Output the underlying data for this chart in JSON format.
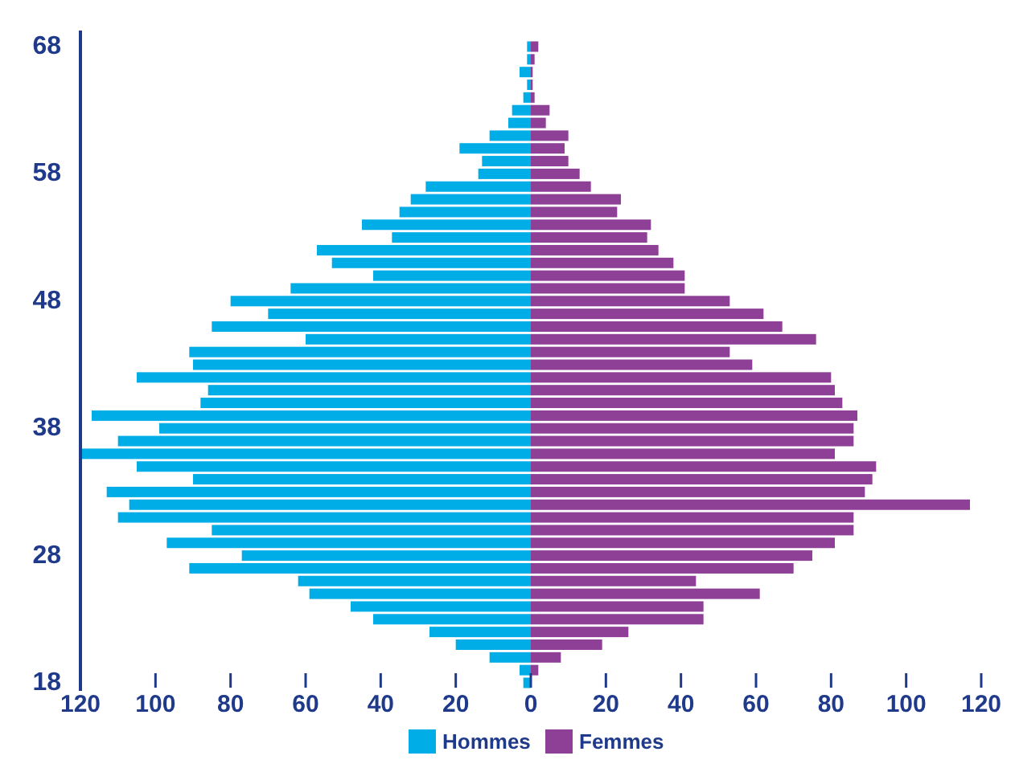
{
  "chart_data": {
    "type": "bar",
    "orientation": "horizontal",
    "stacked": true,
    "x": [
      68,
      67,
      66,
      65,
      64,
      63,
      62,
      61,
      60,
      59,
      58,
      57,
      56,
      55,
      54,
      53,
      52,
      51,
      50,
      49,
      48,
      47,
      46,
      45,
      44,
      43,
      42,
      41,
      40,
      39,
      38,
      37,
      36,
      35,
      34,
      33,
      32,
      31,
      30,
      29,
      28,
      27,
      26,
      25,
      24,
      23,
      22,
      21,
      20,
      19,
      18
    ],
    "series": [
      {
        "name": "Hommes",
        "color": "#00ade6",
        "values": [
          -1,
          -1,
          -3,
          -1,
          -2,
          -5,
          -6,
          -11,
          -19,
          -13,
          -14,
          -28,
          -32,
          -35,
          -45,
          -37,
          -57,
          -53,
          -42,
          -64,
          -80,
          -70,
          -85,
          -60,
          -91,
          -90,
          -105,
          -86,
          -88,
          -117,
          -99,
          -110,
          -120,
          -105,
          -90,
          -113,
          -107,
          -110,
          -85,
          -97,
          -77,
          -91,
          -62,
          -59,
          -48,
          -42,
          -27,
          -20,
          -11,
          -3,
          -2
        ]
      },
      {
        "name": "Femmes",
        "color": "#8e3f96",
        "values": [
          2,
          1,
          0.5,
          0.5,
          1,
          5,
          4,
          10,
          9,
          10,
          13,
          16,
          24,
          23,
          32,
          31,
          34,
          38,
          41,
          41,
          53,
          62,
          67,
          76,
          53,
          59,
          80,
          81,
          83,
          87,
          86,
          86,
          81,
          92,
          91,
          89,
          117,
          86,
          86,
          81,
          75,
          70,
          44,
          61,
          46,
          46,
          26,
          19,
          8,
          2,
          0
        ]
      }
    ],
    "xlim": [
      -120,
      120
    ],
    "xticks": [
      {
        "value": -120,
        "label": "120"
      },
      {
        "value": -100,
        "label": "100"
      },
      {
        "value": -80,
        "label": "80"
      },
      {
        "value": -60,
        "label": "60"
      },
      {
        "value": -40,
        "label": "40"
      },
      {
        "value": -20,
        "label": "20"
      },
      0,
      20,
      40,
      60,
      80,
      100,
      120
    ],
    "ylim": [
      18,
      68
    ],
    "yticks": [
      18,
      28,
      38,
      48,
      58,
      68
    ],
    "grid": false,
    "legend": "bottom"
  }
}
